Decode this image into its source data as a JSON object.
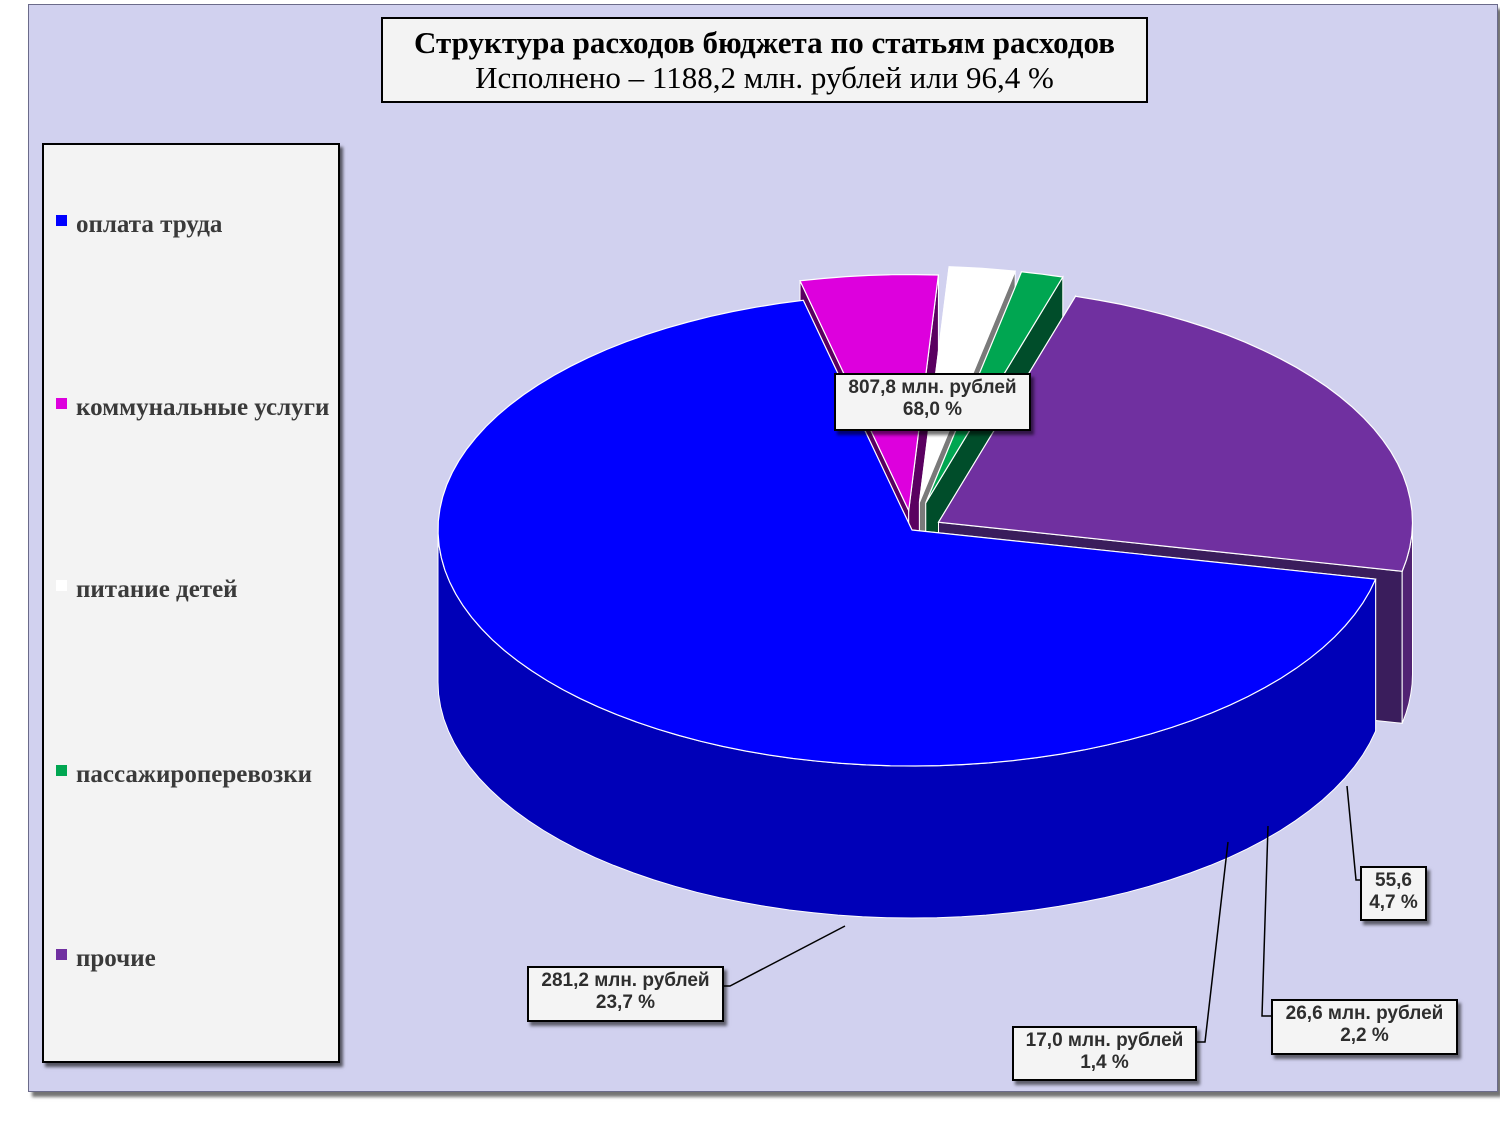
{
  "chart_data": {
    "type": "pie",
    "title": "Структура расходов бюджета по статьям расходов",
    "subtitle": "Исполнено – 1188,2 млн. рублей или 96,4 %",
    "legend_position": "left",
    "categories": [
      "оплата труда",
      "коммунальные услуги",
      "питание детей",
      "пассажироперевозки",
      "прочие"
    ],
    "values": [
      807.8,
      55.6,
      26.6,
      17.0,
      281.2
    ],
    "percents": [
      68.0,
      4.7,
      2.2,
      1.4,
      23.7
    ],
    "colors": [
      "#0000ff",
      "#dd00dd",
      "#ffffff",
      "#00a651",
      "#7030a0"
    ],
    "data_labels": [
      {
        "value": "807,8 млн. рублей",
        "percent": "68,0 %"
      },
      {
        "value": "55,6",
        "percent": "4,7 %"
      },
      {
        "value": "26,6 млн. рублей",
        "percent": "2,2 %"
      },
      {
        "value": "17,0 млн. рублей",
        "percent": "1,4 %"
      },
      {
        "value": "281,2 млн. рублей",
        "percent": "23,7 %"
      }
    ]
  },
  "legend": {
    "items": [
      {
        "label": "оплата труда",
        "color": "#0000ff"
      },
      {
        "label": "коммунальные услуги",
        "color": "#dd00dd"
      },
      {
        "label": "питание детей",
        "color": "#ffffff"
      },
      {
        "label": "пассажироперевозки",
        "color": "#00a651"
      },
      {
        "label": "прочие",
        "color": "#7030a0"
      }
    ]
  }
}
